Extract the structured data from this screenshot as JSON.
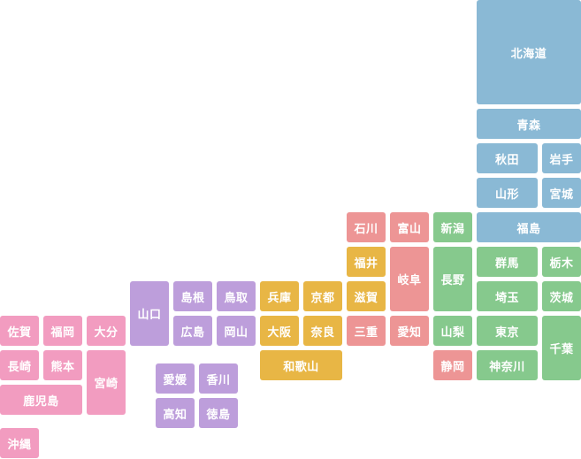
{
  "colors": {
    "hokkaido_tohoku": "#8ab9d5",
    "kanto": "#86c98d",
    "chubu_west": "#ed9595",
    "chubu_east": "#86c98d",
    "kinki": "#e8b645",
    "chugoku": "#bd9edb",
    "shikoku": "#bd9edb",
    "kyushu": "#f29cc0"
  },
  "prefectures": {
    "hokkaido": "北海道",
    "aomori": "青森",
    "akita": "秋田",
    "iwate": "岩手",
    "yamagata": "山形",
    "miyagi": "宮城",
    "fukushima": "福島",
    "niigata": "新潟",
    "toyama": "富山",
    "ishikawa": "石川",
    "fukui": "福井",
    "gifu": "岐阜",
    "nagano": "長野",
    "gunma": "群馬",
    "tochigi": "栃木",
    "saitama": "埼玉",
    "ibaraki": "茨城",
    "shiga": "滋賀",
    "kyoto": "京都",
    "hyogo": "兵庫",
    "tottori": "鳥取",
    "shimane": "島根",
    "yamaguchi": "山口",
    "okayama": "岡山",
    "hiroshima": "広島",
    "osaka": "大阪",
    "nara": "奈良",
    "mie": "三重",
    "aichi": "愛知",
    "yamanashi": "山梨",
    "tokyo": "東京",
    "chiba": "千葉",
    "kanagawa": "神奈川",
    "shizuoka": "静岡",
    "wakayama": "和歌山",
    "ehime": "愛媛",
    "kagawa": "香川",
    "kochi": "高知",
    "tokushima": "徳島",
    "saga": "佐賀",
    "fukuoka": "福岡",
    "oita": "大分",
    "nagasaki": "長崎",
    "kumamoto": "熊本",
    "miyazaki": "宮崎",
    "kagoshima": "鹿児島",
    "okinawa": "沖縄"
  }
}
